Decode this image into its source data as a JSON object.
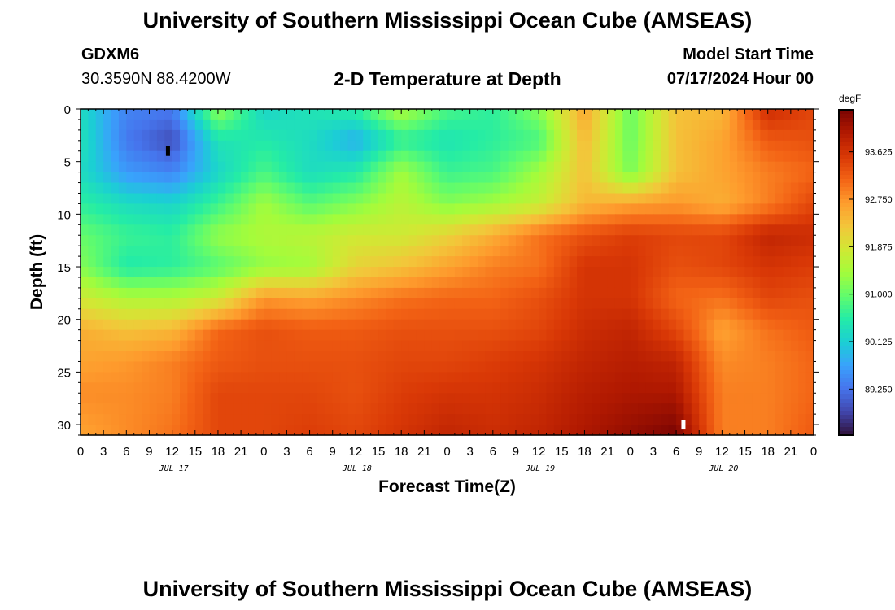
{
  "header": {
    "title": "University of Southern Mississippi Ocean Cube (AMSEAS)",
    "station": "GDXM6",
    "coordinates": "30.3590N  88.4200W",
    "subtitle": "2-D Temperature at Depth",
    "model_start_label": "Model Start Time",
    "model_start_value": "07/17/2024 Hour 00"
  },
  "footer": {
    "title": "University of Southern Mississippi Ocean Cube (AMSEAS)"
  },
  "chart_data": {
    "type": "heatmap",
    "xlabel": "Forecast Time(Z)",
    "ylabel": "Depth (ft)",
    "x_range_hours": [
      0,
      96
    ],
    "y_range": [
      0,
      31
    ],
    "x_tick_labels": [
      "0",
      "3",
      "6",
      "9",
      "12",
      "15",
      "18",
      "21",
      "0",
      "3",
      "6",
      "9",
      "12",
      "15",
      "18",
      "21",
      "0",
      "3",
      "6",
      "9",
      "12",
      "15",
      "18",
      "21",
      "0",
      "3",
      "6",
      "9",
      "12",
      "15",
      "18",
      "21",
      "0"
    ],
    "day_labels": [
      "JUL 17",
      "JUL 18",
      "JUL 19",
      "JUL 20"
    ],
    "y_ticks": [
      0,
      5,
      10,
      15,
      20,
      25,
      30
    ],
    "colorbar": {
      "units": "degF",
      "range": [
        88.4,
        94.4
      ],
      "ticks": [
        "93.625",
        "92.750",
        "91.875",
        "91.000",
        "90.125",
        "89.250"
      ],
      "colors": [
        "#30123b",
        "#4145ab",
        "#4675ed",
        "#39a2fc",
        "#1bcfd4",
        "#24eca6",
        "#61fc6c",
        "#a4fc3b",
        "#d1e834",
        "#f3c63a",
        "#fe9b2d",
        "#f36315",
        "#d93806",
        "#b11901",
        "#7a0402"
      ]
    },
    "markers": [
      {
        "color": "#000000",
        "hour": 11.5,
        "depth": 4
      },
      {
        "color": "#ffffff",
        "hour": 79,
        "depth": 30
      }
    ],
    "depth_levels_ft": [
      0,
      3,
      6,
      9,
      12,
      15,
      18,
      21,
      24,
      27,
      31
    ],
    "time_hours": [
      0,
      6,
      12,
      18,
      24,
      30,
      36,
      42,
      48,
      54,
      60,
      66,
      72,
      78,
      84,
      90,
      96
    ],
    "values_degF": [
      [
        90.3,
        89.4,
        89.3,
        91.3,
        90.2,
        90.4,
        90.6,
        91.5,
        90.8,
        90.6,
        91.2,
        92.6,
        91.0,
        92.3,
        92.4,
        93.7,
        93.4
      ],
      [
        90.4,
        89.3,
        88.9,
        90.4,
        90.5,
        90.3,
        89.8,
        90.6,
        90.4,
        90.6,
        90.8,
        92.4,
        91.0,
        92.3,
        92.6,
        93.2,
        93.3
      ],
      [
        90.3,
        89.6,
        89.4,
        90.2,
        90.8,
        90.3,
        90.5,
        91.4,
        90.7,
        90.8,
        91.4,
        92.3,
        91.1,
        92.3,
        92.6,
        92.9,
        93.1
      ],
      [
        90.6,
        90.3,
        90.2,
        90.7,
        91.4,
        90.9,
        91.2,
        91.6,
        91.2,
        91.4,
        91.7,
        92.4,
        92.6,
        92.7,
        92.5,
        92.9,
        93.4
      ],
      [
        91.0,
        90.7,
        90.6,
        91.3,
        91.5,
        91.6,
        91.8,
        91.8,
        92.1,
        92.5,
        93.0,
        93.3,
        93.5,
        93.4,
        93.4,
        93.8,
        93.7
      ],
      [
        91.2,
        90.5,
        90.6,
        90.9,
        91.3,
        91.4,
        92.1,
        92.3,
        92.6,
        92.9,
        93.0,
        93.6,
        93.6,
        93.3,
        93.4,
        93.6,
        93.5
      ],
      [
        91.8,
        91.5,
        91.5,
        91.8,
        92.7,
        92.6,
        92.8,
        93.0,
        93.1,
        93.1,
        93.3,
        93.6,
        93.6,
        93.1,
        93.0,
        93.4,
        93.3
      ],
      [
        92.5,
        92.3,
        92.4,
        93.1,
        93.3,
        93.2,
        93.2,
        93.3,
        93.3,
        93.3,
        93.4,
        93.7,
        93.8,
        93.4,
        92.6,
        93.0,
        93.2
      ],
      [
        92.6,
        92.7,
        92.9,
        93.2,
        93.3,
        93.3,
        93.3,
        93.4,
        93.4,
        93.5,
        93.6,
        93.8,
        93.9,
        93.8,
        92.8,
        92.9,
        93.1
      ],
      [
        92.8,
        92.8,
        92.9,
        93.4,
        93.4,
        93.4,
        93.3,
        93.5,
        93.6,
        93.6,
        93.7,
        93.9,
        94.0,
        94.0,
        92.9,
        92.9,
        93.1
      ],
      [
        92.6,
        92.8,
        93.0,
        93.4,
        93.4,
        93.5,
        93.4,
        93.6,
        93.8,
        93.7,
        93.8,
        94.0,
        94.2,
        94.4,
        92.9,
        92.9,
        93.2
      ]
    ]
  }
}
